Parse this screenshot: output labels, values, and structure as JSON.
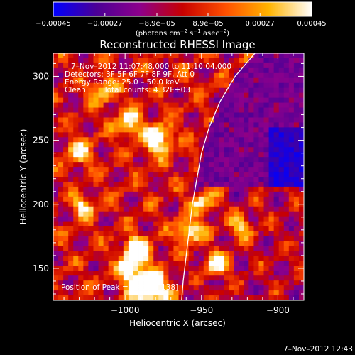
{
  "chart_data": {
    "type": "heatmap",
    "title": "Reconstructed RHESSI Image",
    "xlabel": "Heliocentric X (arcsec)",
    "ylabel": "Heliocentric Y (arcsec)",
    "xlim": [
      -1047,
      -883
    ],
    "ylim": [
      125,
      318
    ],
    "x_ticks": [
      -1000,
      -950,
      -900
    ],
    "x_tick_labels": [
      "−1000",
      "−950",
      "−900"
    ],
    "y_ticks": [
      150,
      200,
      250,
      300
    ],
    "y_tick_labels": [
      "150",
      "200",
      "250",
      "300"
    ],
    "colorbar": {
      "range": [
        -0.00045,
        0.00045
      ],
      "tick_values": [
        -0.00045,
        -0.00027,
        -8.9e-05,
        8.9e-05,
        0.00027,
        0.00045
      ],
      "tick_labels": [
        "−0.00045",
        "−0.00027",
        "−8.9e−05",
        "8.9e−05",
        "0.00027",
        "0.00045"
      ],
      "unit_base": "(photons cm",
      "unit_exp1": "−2",
      "unit_mid": " s",
      "unit_exp2": "−1",
      "unit_mid2": " asec",
      "unit_exp3": "−2",
      "unit_end": ")",
      "colors": [
        "#0000ff",
        "#4b0096",
        "#8c008c",
        "#c80000",
        "#ff5000",
        "#ffb400",
        "#ffffff"
      ]
    },
    "annotations": {
      "time_range": "7–Nov–2012 11:07:48.000 to 11:10:04.000",
      "detectors": "Detectors: 3F 5F 6F 7F 8F 9F, Att 0",
      "energy": "Energy Range: 25.0 – 50.0 keV",
      "method": "Clean",
      "total_counts": "Total counts: 4.32E+03",
      "peak": "Position of Peak = [−1033,138]"
    },
    "limb_curve": [
      [
        -915,
        318
      ],
      [
        -928,
        300
      ],
      [
        -938,
        280
      ],
      [
        -945,
        260
      ],
      [
        -950,
        240
      ],
      [
        -953,
        220
      ],
      [
        -956,
        200
      ],
      [
        -958,
        180
      ],
      [
        -960,
        160
      ],
      [
        -962,
        140
      ],
      [
        -963,
        125
      ]
    ],
    "peak_position": [
      -1033,
      138
    ]
  },
  "footer": {
    "timestamp": "7–Nov–2012 12:43"
  }
}
